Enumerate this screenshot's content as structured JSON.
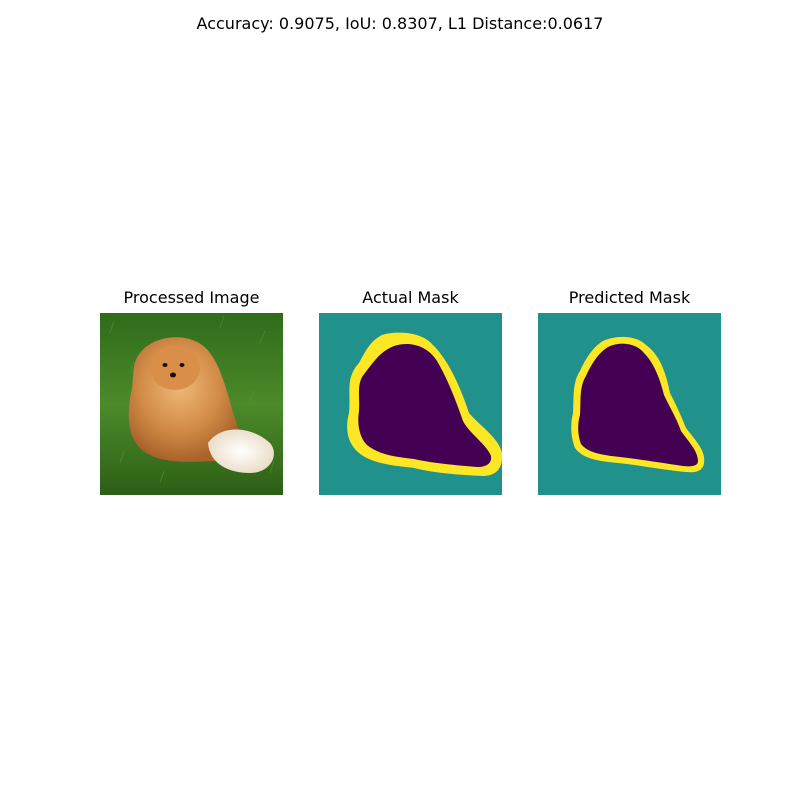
{
  "figure": {
    "suptitle": "Accuracy: 0.9075, IoU: 0.8307, L1 Distance:0.0617"
  },
  "panels": [
    {
      "title": "Processed Image"
    },
    {
      "title": "Actual Mask"
    },
    {
      "title": "Predicted Mask"
    }
  ],
  "colors": {
    "mask_background": "#21918c",
    "mask_foreground": "#440154",
    "mask_border": "#fde725",
    "grass": "#3f7a22",
    "fur": "#d08a45"
  }
}
